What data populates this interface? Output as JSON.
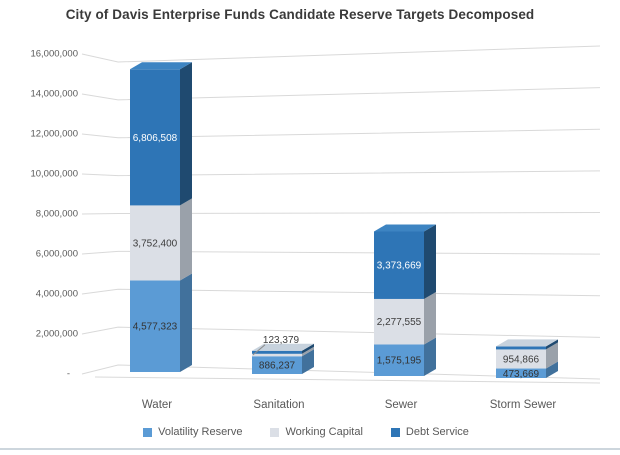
{
  "title": "City of Davis Enterprise Funds Candidate Reserve Targets Decomposed",
  "chart_data": {
    "type": "bar",
    "subtype": "3d-stacked-column",
    "title": "City of Davis Enterprise Funds Candidate Reserve Targets Decomposed",
    "categories": [
      "Water",
      "Sanitation",
      "Sewer",
      "Storm Sewer"
    ],
    "series": [
      {
        "name": "Volatility Reserve",
        "values": [
          4577323,
          886237,
          1575195,
          473669
        ],
        "color": "#5b9bd5",
        "side_color": "#41719c",
        "top_color": "#6faddf",
        "label_color": "#333333"
      },
      {
        "name": "Working Capital",
        "values": [
          3752400,
          123379,
          2277555,
          954866
        ],
        "color": "#dbdfe6",
        "side_color": "#9aa1aa",
        "top_color": "#e8ebf0",
        "label_color": "#3d3d3d"
      },
      {
        "name": "Debt Service",
        "values": [
          6806508,
          0,
          3373669,
          0
        ],
        "color": "#2e75b6",
        "side_color": "#1f4a70",
        "top_color": "#3d84c2",
        "label_color": "#ffffff"
      }
    ],
    "data_labels": [
      [
        "4,577,323",
        "886,237",
        "1,575,195",
        "473,669"
      ],
      [
        "3,752,400",
        "123,379",
        "2,277,555",
        "954,866"
      ],
      [
        "6,806,508",
        "",
        "3,373,669",
        ""
      ]
    ],
    "y_axis": {
      "min": 0,
      "max": 16000000,
      "step": 2000000,
      "tick_labels": [
        "16,000,000",
        "14,000,000",
        "12,000,000",
        "10,000,000",
        "8,000,000",
        "6,000,000",
        "4,000,000",
        "2,000,000",
        "-"
      ]
    },
    "xlabel": "",
    "ylabel": "",
    "grid": true,
    "legend_position": "bottom"
  },
  "colors": {
    "gridline": "#d9d9d9",
    "axis_text": "#595959",
    "category_text": "#595959",
    "legend_text": "#595959",
    "title_text": "#3a3a3a",
    "zero_cap_top": "#c7d2dd",
    "leader_line": "#8c8c8c",
    "page_bottom_line": "#cdd6dd"
  }
}
